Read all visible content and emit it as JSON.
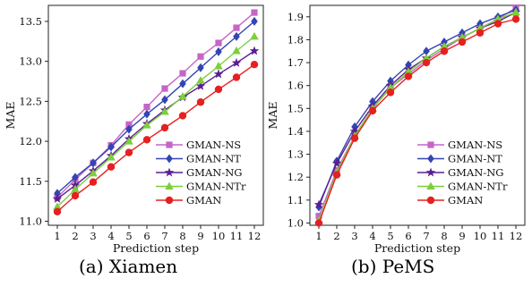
{
  "colors": {
    "GMAN-NS": "#c665c6",
    "GMAN-NT": "#3344b3",
    "GMAN-NG": "#5a1f8f",
    "GMAN-NTr": "#7ccf3c",
    "GMAN": "#e62020"
  },
  "markers": {
    "GMAN-NS": "square",
    "GMAN-NT": "diamond",
    "GMAN-NG": "star",
    "GMAN-NTr": "triangle",
    "GMAN": "circle"
  },
  "chart_data": [
    {
      "type": "line",
      "caption": "(a) Xiamen",
      "xlabel": "Prediction step",
      "ylabel": "MAE",
      "x": [
        1,
        2,
        3,
        4,
        5,
        6,
        7,
        8,
        9,
        10,
        11,
        12
      ],
      "xlim": [
        0.5,
        12.5
      ],
      "ylim": [
        10.95,
        13.7
      ],
      "yticks": [
        "11.0",
        "11.5",
        "12.0",
        "12.5",
        "13.0",
        "13.5"
      ],
      "grid": false,
      "legend": "lower-right",
      "series": [
        {
          "name": "GMAN-NS",
          "values": [
            11.3,
            11.52,
            11.73,
            11.95,
            12.21,
            12.43,
            12.66,
            12.85,
            13.06,
            13.23,
            13.42,
            13.61
          ]
        },
        {
          "name": "GMAN-NT",
          "values": [
            11.35,
            11.55,
            11.73,
            11.93,
            12.15,
            12.34,
            12.52,
            12.72,
            12.92,
            13.12,
            13.31,
            13.5
          ]
        },
        {
          "name": "GMAN-NG",
          "values": [
            11.28,
            11.45,
            11.63,
            11.82,
            12.03,
            12.22,
            12.39,
            12.55,
            12.69,
            12.84,
            12.98,
            13.13
          ]
        },
        {
          "name": "GMAN-NTr",
          "values": [
            11.18,
            11.4,
            11.6,
            11.8,
            12.0,
            12.2,
            12.37,
            12.56,
            12.76,
            12.94,
            13.13,
            13.31
          ]
        },
        {
          "name": "GMAN",
          "values": [
            11.12,
            11.32,
            11.49,
            11.68,
            11.86,
            12.02,
            12.17,
            12.32,
            12.49,
            12.65,
            12.8,
            12.96
          ]
        }
      ]
    },
    {
      "type": "line",
      "caption": "(b) PeMS",
      "xlabel": "Prediction step",
      "ylabel": "MAE",
      "x": [
        1,
        2,
        3,
        4,
        5,
        6,
        7,
        8,
        9,
        10,
        11,
        12
      ],
      "xlim": [
        0.5,
        12.5
      ],
      "ylim": [
        0.99,
        1.95
      ],
      "yticks": [
        "1.0",
        "1.1",
        "1.2",
        "1.3",
        "1.4",
        "1.5",
        "1.6",
        "1.7",
        "1.8",
        "1.9"
      ],
      "grid": false,
      "legend": "lower-right",
      "series": [
        {
          "name": "GMAN-NS",
          "values": [
            1.03,
            1.23,
            1.38,
            1.5,
            1.59,
            1.65,
            1.71,
            1.76,
            1.81,
            1.85,
            1.89,
            1.94
          ]
        },
        {
          "name": "GMAN-NT",
          "values": [
            1.07,
            1.27,
            1.42,
            1.53,
            1.62,
            1.69,
            1.75,
            1.79,
            1.83,
            1.87,
            1.9,
            1.93
          ]
        },
        {
          "name": "GMAN-NG",
          "values": [
            1.08,
            1.26,
            1.4,
            1.51,
            1.6,
            1.67,
            1.72,
            1.77,
            1.81,
            1.85,
            1.88,
            1.92
          ]
        },
        {
          "name": "GMAN-NTr",
          "values": [
            1.01,
            1.22,
            1.38,
            1.5,
            1.59,
            1.66,
            1.72,
            1.77,
            1.81,
            1.85,
            1.89,
            1.92
          ]
        },
        {
          "name": "GMAN",
          "values": [
            1.0,
            1.21,
            1.37,
            1.49,
            1.57,
            1.64,
            1.7,
            1.75,
            1.79,
            1.83,
            1.87,
            1.89
          ]
        }
      ]
    }
  ]
}
